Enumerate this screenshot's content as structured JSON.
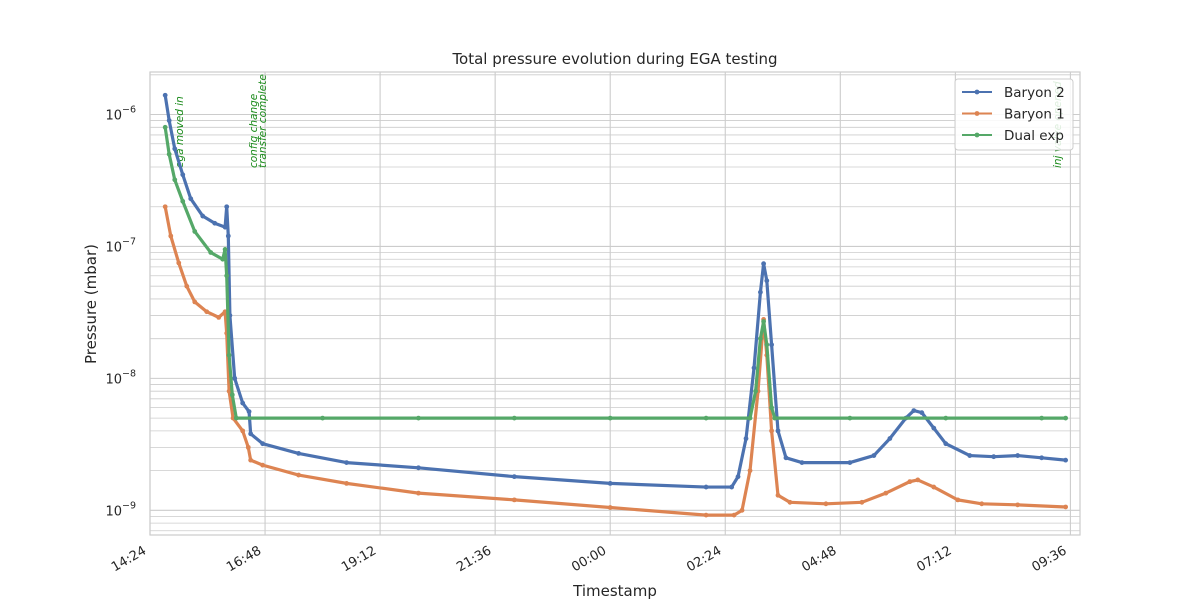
{
  "chart_data": {
    "type": "line",
    "title": "Total pressure evolution during EGA testing",
    "xlabel": "Timestamp",
    "ylabel": "Pressure (mbar)",
    "y_scale": "log",
    "ylim": [
      6.5e-10,
      2.1e-06
    ],
    "xlim": [
      "14:24",
      "09:48"
    ],
    "x_ticks": [
      "14:24",
      "16:48",
      "19:12",
      "21:36",
      "00:00",
      "02:24",
      "04:48",
      "07:12",
      "09:36"
    ],
    "x_tick_minutes": [
      0,
      144,
      288,
      432,
      576,
      720,
      864,
      1008,
      1152
    ],
    "y_ticks": [
      {
        "value": 1e-09,
        "base": "10",
        "exp": "−9"
      },
      {
        "value": 1e-08,
        "base": "10",
        "exp": "−8"
      },
      {
        "value": 1e-07,
        "base": "10",
        "exp": "−7"
      },
      {
        "value": 1e-06,
        "base": "10",
        "exp": "−6"
      }
    ],
    "grid": true,
    "legend_position": "top-right",
    "annotations": [
      {
        "at": "15:05",
        "text": "ega moved in"
      },
      {
        "at": "16:38",
        "text": "config change"
      },
      {
        "at": "16:49",
        "text": "transfer complete"
      },
      {
        "at": "09:24",
        "text": "inj valve opened"
      }
    ],
    "series": [
      {
        "name": "Baryon 2",
        "color": "#4c72b0",
        "points": [
          [
            "14:43",
            1.4e-06
          ],
          [
            "14:48",
            9e-07
          ],
          [
            "14:55",
            5.5e-07
          ],
          [
            "15:05",
            3.5e-07
          ],
          [
            "15:15",
            2.3e-07
          ],
          [
            "15:30",
            1.7e-07
          ],
          [
            "15:45",
            1.5e-07
          ],
          [
            "15:58",
            1.4e-07
          ],
          [
            "16:00",
            2e-07
          ],
          [
            "16:02",
            1.2e-07
          ],
          [
            "16:04",
            3e-08
          ],
          [
            "16:10",
            1e-08
          ],
          [
            "16:20",
            6.5e-09
          ],
          [
            "16:28",
            5.6e-09
          ],
          [
            "16:30",
            3.8e-09
          ],
          [
            "16:45",
            3.2e-09
          ],
          [
            "17:30",
            2.7e-09
          ],
          [
            "18:30",
            2.3e-09
          ],
          [
            "20:00",
            2.1e-09
          ],
          [
            "22:00",
            1.8e-09
          ],
          [
            "00:00",
            1.6e-09
          ],
          [
            "02:00",
            1.5e-09
          ],
          [
            "02:32",
            1.5e-09
          ],
          [
            "02:40",
            1.8e-09
          ],
          [
            "02:50",
            3.5e-09
          ],
          [
            "03:00",
            1.2e-08
          ],
          [
            "03:08",
            4.5e-08
          ],
          [
            "03:12",
            7.4e-08
          ],
          [
            "03:16",
            5.5e-08
          ],
          [
            "03:22",
            1.8e-08
          ],
          [
            "03:30",
            4e-09
          ],
          [
            "03:40",
            2.5e-09
          ],
          [
            "04:00",
            2.3e-09
          ],
          [
            "05:00",
            2.3e-09
          ],
          [
            "05:30",
            2.6e-09
          ],
          [
            "05:50",
            3.5e-09
          ],
          [
            "06:10",
            5e-09
          ],
          [
            "06:20",
            5.7e-09
          ],
          [
            "06:30",
            5.5e-09
          ],
          [
            "06:45",
            4.2e-09
          ],
          [
            "07:00",
            3.2e-09
          ],
          [
            "07:30",
            2.6e-09
          ],
          [
            "08:00",
            2.55e-09
          ],
          [
            "08:30",
            2.6e-09
          ],
          [
            "09:00",
            2.5e-09
          ],
          [
            "09:30",
            2.4e-09
          ]
        ]
      },
      {
        "name": "Baryon 1",
        "color": "#dd8452",
        "points": [
          [
            "14:43",
            2e-07
          ],
          [
            "14:50",
            1.2e-07
          ],
          [
            "15:00",
            7.5e-08
          ],
          [
            "15:10",
            5e-08
          ],
          [
            "15:20",
            3.8e-08
          ],
          [
            "15:35",
            3.2e-08
          ],
          [
            "15:50",
            2.9e-08
          ],
          [
            "15:58",
            3.2e-08
          ],
          [
            "16:00",
            2.2e-08
          ],
          [
            "16:03",
            8e-09
          ],
          [
            "16:08",
            5e-09
          ],
          [
            "16:20",
            4e-09
          ],
          [
            "16:27",
            3e-09
          ],
          [
            "16:30",
            2.4e-09
          ],
          [
            "16:45",
            2.2e-09
          ],
          [
            "17:30",
            1.85e-09
          ],
          [
            "18:30",
            1.6e-09
          ],
          [
            "20:00",
            1.35e-09
          ],
          [
            "22:00",
            1.2e-09
          ],
          [
            "00:00",
            1.05e-09
          ],
          [
            "02:00",
            9.2e-10
          ],
          [
            "02:35",
            9.2e-10
          ],
          [
            "02:45",
            1e-09
          ],
          [
            "02:55",
            2e-09
          ],
          [
            "03:05",
            8e-09
          ],
          [
            "03:12",
            2.8e-08
          ],
          [
            "03:16",
            1.5e-08
          ],
          [
            "03:22",
            4e-09
          ],
          [
            "03:30",
            1.3e-09
          ],
          [
            "03:45",
            1.15e-09
          ],
          [
            "04:30",
            1.12e-09
          ],
          [
            "05:15",
            1.15e-09
          ],
          [
            "05:45",
            1.35e-09
          ],
          [
            "06:15",
            1.65e-09
          ],
          [
            "06:25",
            1.7e-09
          ],
          [
            "06:45",
            1.5e-09
          ],
          [
            "07:15",
            1.2e-09
          ],
          [
            "07:45",
            1.12e-09
          ],
          [
            "08:30",
            1.1e-09
          ],
          [
            "09:30",
            1.06e-09
          ]
        ]
      },
      {
        "name": "Dual exp",
        "color": "#55a868",
        "points": [
          [
            "14:43",
            8e-07
          ],
          [
            "14:48",
            5e-07
          ],
          [
            "14:55",
            3.2e-07
          ],
          [
            "15:05",
            2.2e-07
          ],
          [
            "15:20",
            1.3e-07
          ],
          [
            "15:40",
            9e-08
          ],
          [
            "15:55",
            8e-08
          ],
          [
            "15:58",
            9.5e-08
          ],
          [
            "16:00",
            6e-08
          ],
          [
            "16:03",
            1.5e-08
          ],
          [
            "16:07",
            7.5e-09
          ],
          [
            "16:12",
            5e-09
          ],
          [
            "18:00",
            5e-09
          ],
          [
            "20:00",
            5e-09
          ],
          [
            "22:00",
            5e-09
          ],
          [
            "00:00",
            5e-09
          ],
          [
            "02:00",
            5e-09
          ],
          [
            "02:55",
            5e-09
          ],
          [
            "03:02",
            8e-09
          ],
          [
            "03:08",
            2e-08
          ],
          [
            "03:12",
            2.7e-08
          ],
          [
            "03:16",
            1.8e-08
          ],
          [
            "03:22",
            6e-09
          ],
          [
            "03:26",
            5e-09
          ],
          [
            "05:00",
            5e-09
          ],
          [
            "07:00",
            5e-09
          ],
          [
            "09:00",
            5e-09
          ],
          [
            "09:30",
            5e-09
          ]
        ]
      }
    ]
  }
}
